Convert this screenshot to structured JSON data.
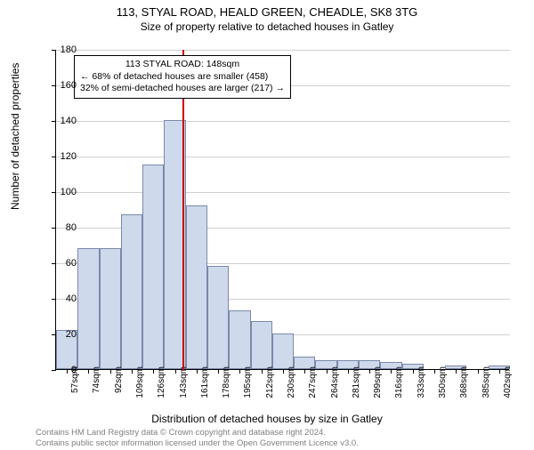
{
  "title": "113, STYAL ROAD, HEALD GREEN, CHEADLE, SK8 3TG",
  "subtitle": "Size of property relative to detached houses in Gatley",
  "ylabel": "Number of detached properties",
  "xlabel": "Distribution of detached houses by size in Gatley",
  "chart": {
    "type": "histogram",
    "ylim": [
      0,
      180
    ],
    "ytick_step": 20,
    "yticks": [
      0,
      20,
      40,
      60,
      80,
      100,
      120,
      140,
      160,
      180
    ],
    "bar_fill": "#cfd9ec",
    "bar_stroke": "#7a8aa8",
    "grid_color": "#d0d0d0",
    "background": "#ffffff",
    "marker_color": "#cc0000",
    "marker_bin_index": 5,
    "categories": [
      "57sqm",
      "74sqm",
      "92sqm",
      "109sqm",
      "126sqm",
      "143sqm",
      "161sqm",
      "178sqm",
      "195sqm",
      "212sqm",
      "230sqm",
      "247sqm",
      "264sqm",
      "281sqm",
      "299sqm",
      "316sqm",
      "333sqm",
      "350sqm",
      "368sqm",
      "385sqm",
      "402sqm"
    ],
    "values": [
      22,
      68,
      68,
      87,
      115,
      140,
      92,
      58,
      33,
      27,
      20,
      7,
      5,
      5,
      5,
      4,
      3,
      0,
      2,
      0,
      2
    ]
  },
  "annotation": {
    "line1": "113 STYAL ROAD: 148sqm",
    "line2": "← 68% of detached houses are smaller (458)",
    "line3": "32% of semi-detached houses are larger (217) →"
  },
  "footer": {
    "line1": "Contains HM Land Registry data © Crown copyright and database right 2024.",
    "line2": "Contains public sector information licensed under the Open Government Licence v3.0."
  }
}
